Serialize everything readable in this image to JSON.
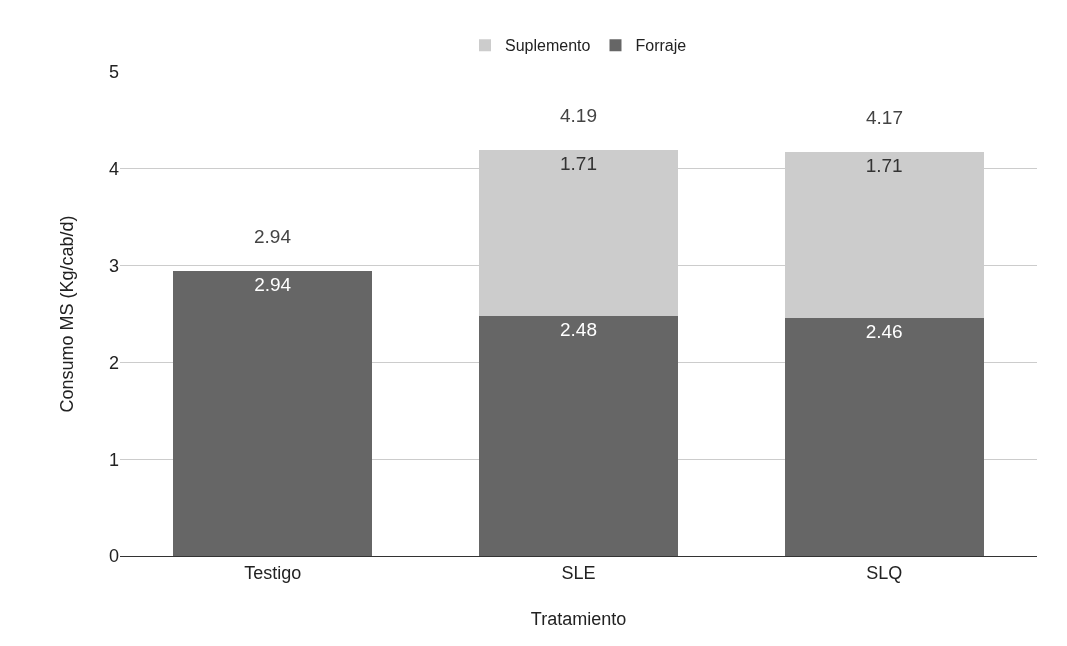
{
  "chart_data": {
    "type": "bar",
    "stacked": true,
    "xlabel": "Tratamiento",
    "ylabel": "Consumo MS (Kg/cab/d)",
    "categories": [
      "Testigo",
      "SLE",
      "SLQ"
    ],
    "series": [
      {
        "name": "Forraje",
        "color": "#666666",
        "values": [
          2.94,
          2.48,
          2.46
        ]
      },
      {
        "name": "Suplemento",
        "color": "#cccccc",
        "values": [
          null,
          1.71,
          1.71
        ]
      }
    ],
    "data_labels": true,
    "totals": [
      "2.94",
      "4.19",
      "4.17"
    ],
    "ylim": [
      0,
      5
    ],
    "yticks": [
      0,
      1,
      2,
      3,
      4,
      5
    ],
    "grid": "y",
    "legend": "top"
  }
}
